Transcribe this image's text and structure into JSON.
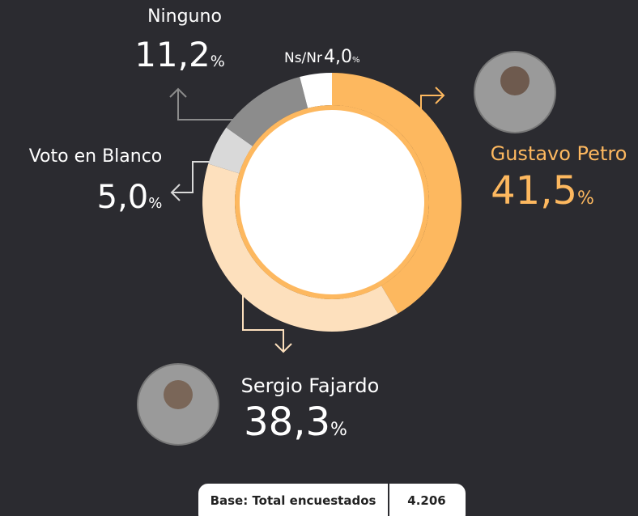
{
  "chart_data": {
    "type": "pie",
    "categories": [
      "Gustavo Petro",
      "Sergio Fajardo",
      "Voto en Blanco",
      "Ninguno",
      "Ns/Nr"
    ],
    "values": [
      41.5,
      38.3,
      5.0,
      11.2,
      4.0
    ],
    "value_labels": [
      "41,5",
      "38,3",
      "5,0",
      "11,2",
      "4,0"
    ],
    "unit": "%",
    "colors": [
      "#fdb85f",
      "#fde0bd",
      "#d9d9d9",
      "#8c8c8c",
      "#ffffff"
    ],
    "note": {
      "label": "Base: Total encuestados",
      "value": "4.206"
    }
  }
}
